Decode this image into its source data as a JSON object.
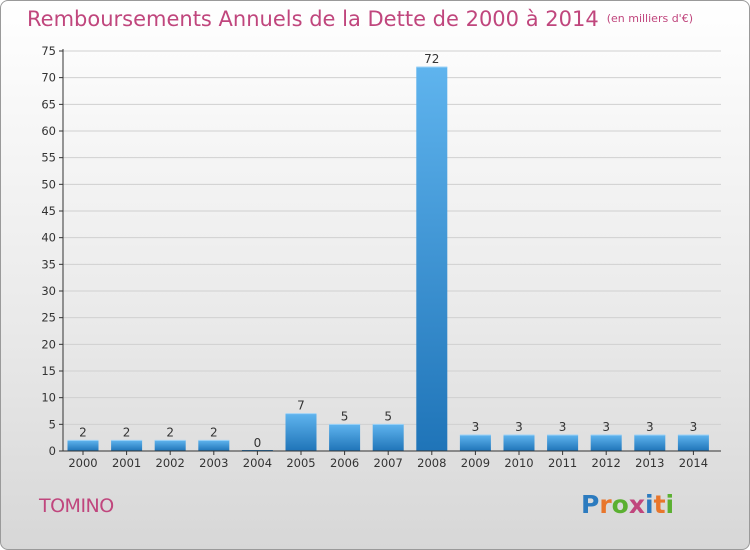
{
  "title": "Remboursements Annuels de la Dette de 2000 à 2014",
  "unit_note": "(en milliers d'€)",
  "commune": "TOMINO",
  "brand": {
    "text": "Proxiti",
    "letters": [
      "P",
      "r",
      "o",
      "x",
      "i",
      "t",
      "i"
    ],
    "colors": [
      "#2c7bbf",
      "#e8762c",
      "#5bb031",
      "#c0467d",
      "#2c7bbf",
      "#e8762c",
      "#5bb031"
    ]
  },
  "colors": {
    "title": "#c0467d",
    "bar_light": "#5fb4ee",
    "bar_dark": "#1f74b8",
    "grid": "#d0d0d0",
    "axis": "#333333"
  },
  "chart_data": {
    "type": "bar",
    "title": "Remboursements Annuels de la Dette de 2000 à 2014",
    "ylabel": "en milliers d'€",
    "xlabel": "",
    "categories": [
      "2000",
      "2001",
      "2002",
      "2003",
      "2004",
      "2005",
      "2006",
      "2007",
      "2008",
      "2009",
      "2010",
      "2011",
      "2012",
      "2013",
      "2014"
    ],
    "values": [
      2,
      2,
      2,
      2,
      0,
      7,
      5,
      5,
      72,
      3,
      3,
      3,
      3,
      3,
      3
    ],
    "data_labels": [
      "2",
      "2",
      "2",
      "2",
      "0",
      "7",
      "5",
      "5",
      "72",
      "3",
      "3",
      "3",
      "3",
      "3",
      "3"
    ],
    "ylim": [
      0,
      75
    ],
    "yticks": [
      0,
      5,
      10,
      15,
      20,
      25,
      30,
      35,
      40,
      45,
      50,
      55,
      60,
      65,
      70,
      75
    ],
    "grid": true
  }
}
